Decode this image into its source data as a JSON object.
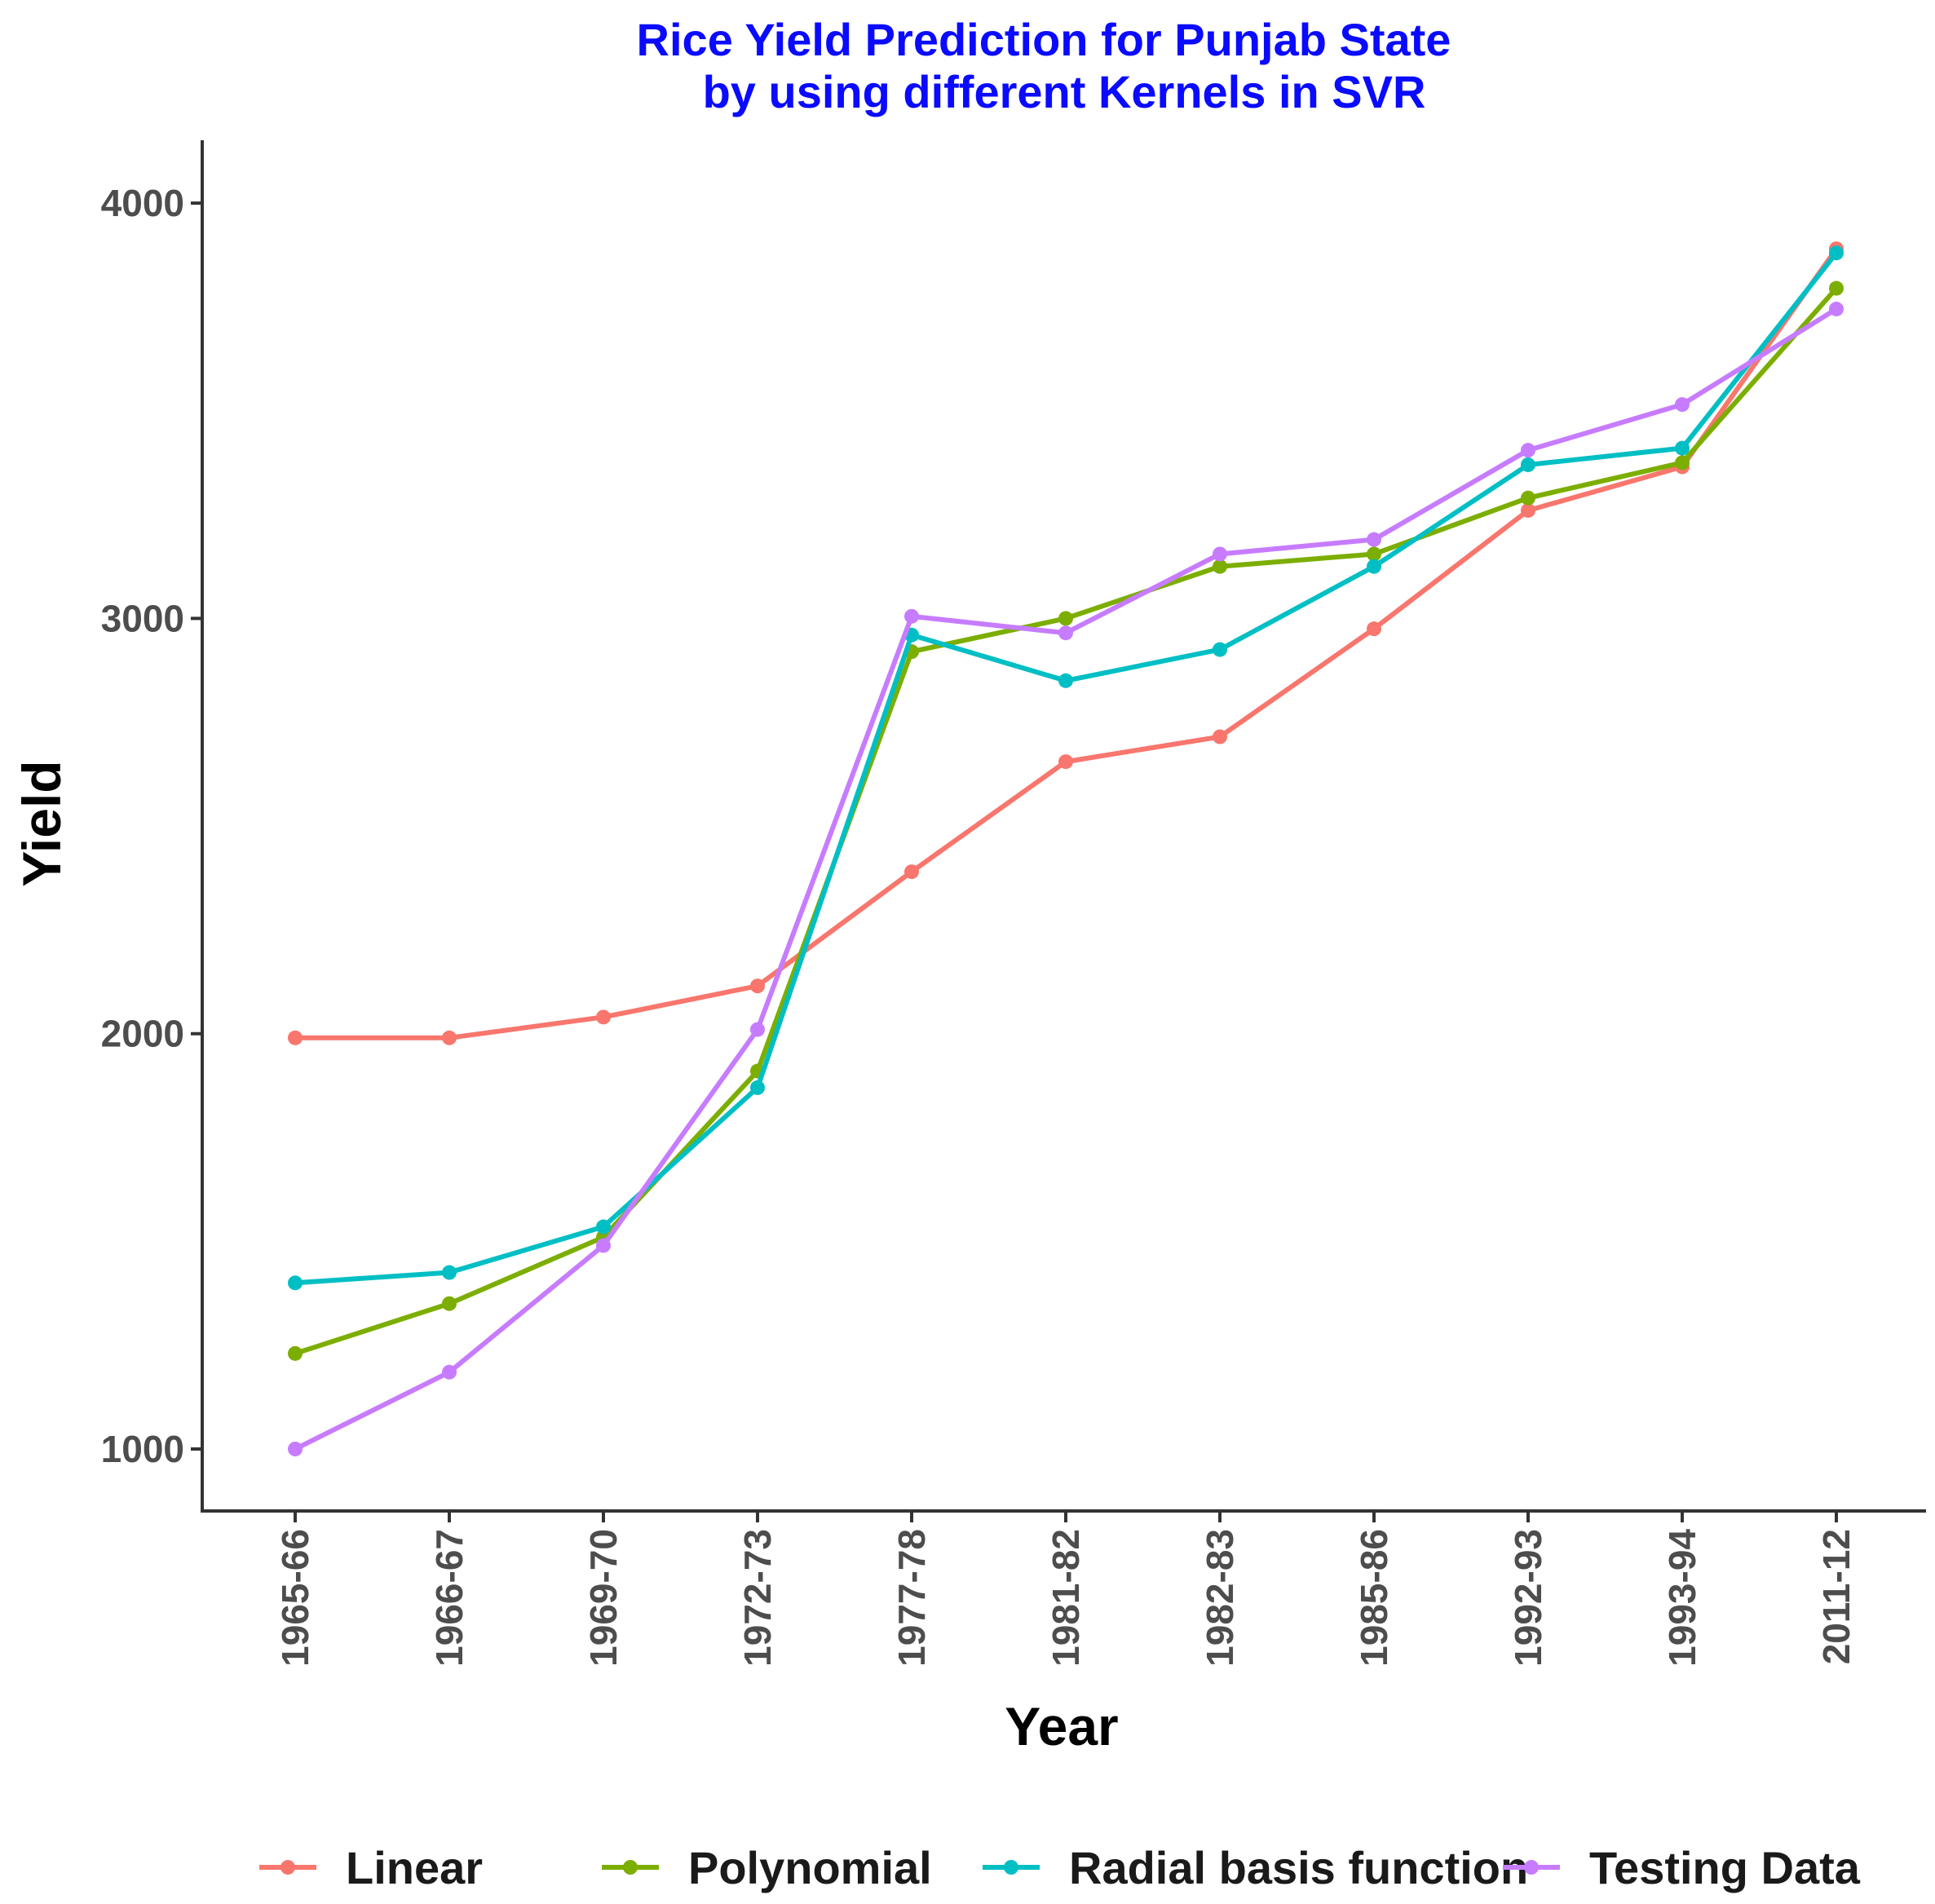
{
  "chart_data": {
    "type": "line",
    "title": [
      "Rice Yield Prediction for Punjab State",
      "by using different Kernels in SVR"
    ],
    "title_color": "#0a0aff",
    "xlabel": "Year",
    "ylabel": "Yield",
    "categories": [
      "1965-66",
      "1966-67",
      "1969-70",
      "1972-73",
      "1977-78",
      "1981-82",
      "1982-83",
      "1985-86",
      "1992-93",
      "1993-94",
      "2011-12"
    ],
    "yticks": [
      1000,
      2000,
      3000,
      4000
    ],
    "ylim": [
      850,
      4150
    ],
    "grid": false,
    "legend_position": "bottom",
    "series": [
      {
        "name": "Linear",
        "color": "#F8766D",
        "values": [
          1990,
          1990,
          2040,
          2115,
          2390,
          2655,
          2715,
          2975,
          3260,
          3365,
          3890
        ]
      },
      {
        "name": "Polynomial",
        "color": "#7CAE00",
        "values": [
          1230,
          1350,
          1510,
          1910,
          2920,
          3000,
          3125,
          3155,
          3290,
          3375,
          3795
        ]
      },
      {
        "name": "Radial basis function",
        "color": "#00BFC4",
        "values": [
          1400,
          1425,
          1535,
          1870,
          2960,
          2850,
          2925,
          3125,
          3370,
          3410,
          3880
        ]
      },
      {
        "name": "Testing Data",
        "color": "#C77CFF",
        "values": [
          1000,
          1185,
          1490,
          2010,
          3005,
          2965,
          3155,
          3190,
          3405,
          3515,
          3745
        ]
      }
    ]
  }
}
